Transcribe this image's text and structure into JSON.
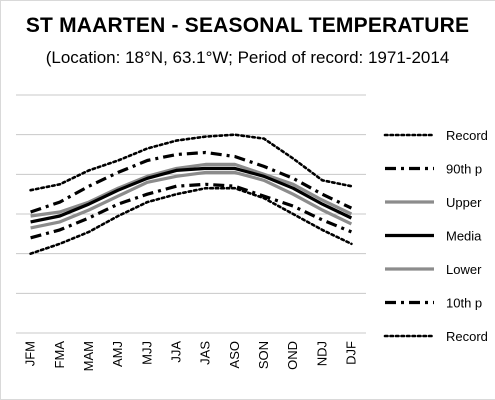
{
  "chart_data": {
    "type": "line",
    "title": "ST MAARTEN - SEASONAL TEMPERATURE",
    "subtitle": "(Location: 18°N, 63.1°W; Period of record: 1971-2014",
    "xlabel": "",
    "ylabel": "",
    "categories": [
      "JFM",
      "FMA",
      "MAM",
      "AMJ",
      "MJJ",
      "JJA",
      "JAS",
      "ASO",
      "SON",
      "OND",
      "NDJ",
      "DJF"
    ],
    "ylim": [
      0,
      6
    ],
    "grid": true,
    "legend_position": "right",
    "series": [
      {
        "name": "Record",
        "style": "dotted",
        "color": "#000000",
        "values": [
          3.6,
          3.75,
          4.1,
          4.35,
          4.65,
          4.85,
          4.95,
          5.0,
          4.9,
          4.4,
          3.85,
          3.7
        ]
      },
      {
        "name": "90th p",
        "style": "dashdot",
        "color": "#000000",
        "values": [
          3.05,
          3.3,
          3.7,
          4.05,
          4.35,
          4.5,
          4.55,
          4.45,
          4.2,
          3.9,
          3.5,
          3.15
        ]
      },
      {
        "name": "Upper",
        "style": "solid",
        "color": "#8c8c8c",
        "values": [
          2.95,
          3.05,
          3.3,
          3.65,
          3.95,
          4.15,
          4.25,
          4.25,
          4.0,
          3.75,
          3.35,
          3.0
        ]
      },
      {
        "name": "Media",
        "style": "solid",
        "color": "#000000",
        "values": [
          2.8,
          2.95,
          3.25,
          3.6,
          3.9,
          4.1,
          4.15,
          4.15,
          3.95,
          3.65,
          3.25,
          2.9
        ]
      },
      {
        "name": "Lower",
        "style": "solid",
        "color": "#8c8c8c",
        "values": [
          2.65,
          2.8,
          3.1,
          3.45,
          3.8,
          3.95,
          4.05,
          4.05,
          3.85,
          3.5,
          3.1,
          2.75
        ]
      },
      {
        "name": "10th p",
        "style": "dashdot",
        "color": "#000000",
        "values": [
          2.4,
          2.6,
          2.9,
          3.25,
          3.5,
          3.7,
          3.75,
          3.7,
          3.45,
          3.2,
          2.85,
          2.55
        ]
      },
      {
        "name": "Record",
        "style": "dotted",
        "color": "#000000",
        "values": [
          2.0,
          2.25,
          2.55,
          2.95,
          3.3,
          3.5,
          3.65,
          3.65,
          3.4,
          3.0,
          2.6,
          2.25
        ]
      }
    ]
  }
}
